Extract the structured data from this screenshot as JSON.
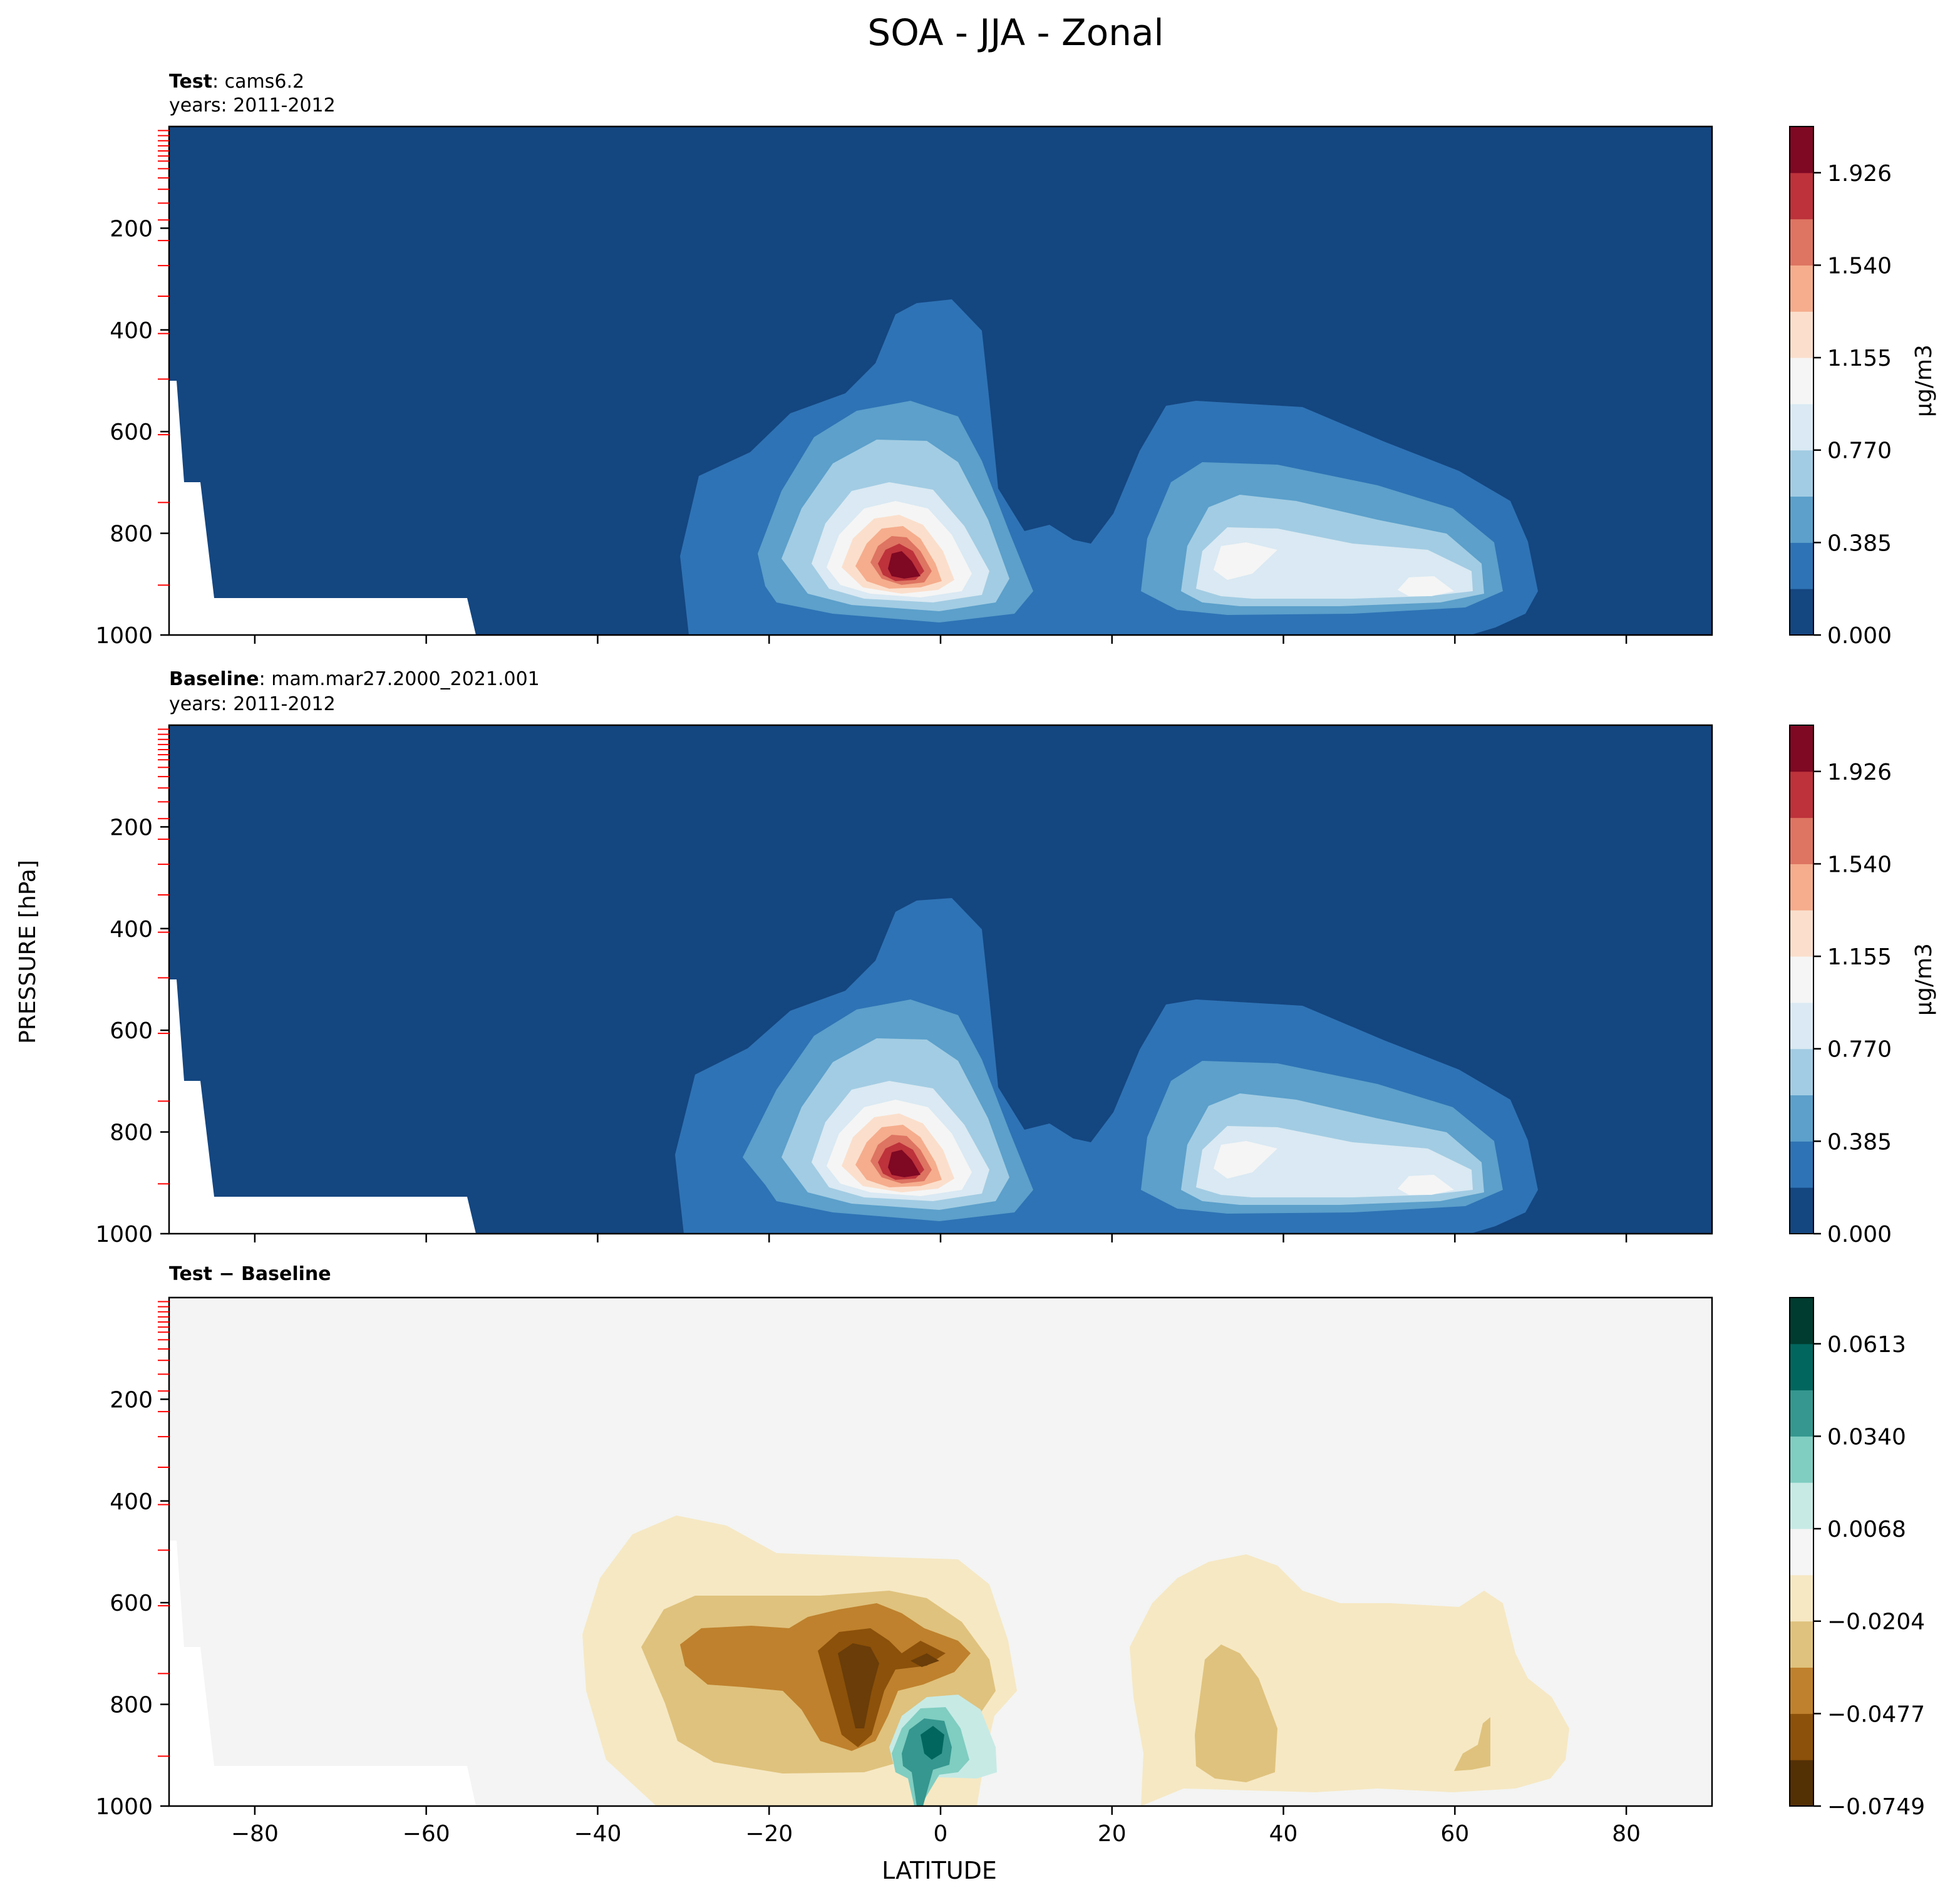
{
  "figure": {
    "suptitle": "SOA - JJA - Zonal",
    "ylabel": "PRESSURE [hPa]",
    "xlabel": "LATITUDE"
  },
  "chart_data": [
    {
      "type": "contour",
      "panel": "test",
      "title_bold": "Test",
      "title_rest": ": cams6.2",
      "subtitle": "years: 2011-2012",
      "xlim": [
        -90,
        90
      ],
      "ylim": [
        1000,
        0
      ],
      "yticks": [
        200,
        400,
        600,
        800,
        1000
      ],
      "colorbar": {
        "label": "μg/m3",
        "ticks": [
          "0.000",
          "0.385",
          "0.770",
          "1.155",
          "1.540",
          "1.926"
        ],
        "range": [
          0,
          2.2
        ],
        "colors": [
          "#144680",
          "#2e73b5",
          "#5ca0cb",
          "#a2cce3",
          "#dae9f3",
          "#f5f5f5",
          "#fbdfcc",
          "#f5ad8d",
          "#de7462",
          "#bd323b",
          "#7f0823"
        ]
      },
      "regions": [
        {
          "name": "tropical-peak",
          "level_count": 10,
          "peak_lat": -3,
          "peak_p": 900,
          "peak_value": 2.0
        },
        {
          "name": "northern-max",
          "level_count": 5,
          "peak_lat": 35,
          "peak_p": 900,
          "peak_value": 1.0
        }
      ]
    },
    {
      "type": "contour",
      "panel": "baseline",
      "title_bold": "Baseline",
      "title_rest": ": mam.mar27.2000_2021.001",
      "subtitle": "years: 2011-2012",
      "xlim": [
        -90,
        90
      ],
      "ylim": [
        1000,
        0
      ],
      "yticks": [
        200,
        400,
        600,
        800,
        1000
      ],
      "colorbar": {
        "label": "μg/m3",
        "ticks": [
          "0.000",
          "0.385",
          "0.770",
          "1.155",
          "1.540",
          "1.926"
        ],
        "range": [
          0,
          2.2
        ],
        "colors": [
          "#144680",
          "#2e73b5",
          "#5ca0cb",
          "#a2cce3",
          "#dae9f3",
          "#f5f5f5",
          "#fbdfcc",
          "#f5ad8d",
          "#de7462",
          "#bd323b",
          "#7f0823"
        ]
      },
      "regions": [
        {
          "name": "tropical-peak",
          "level_count": 10,
          "peak_lat": -3,
          "peak_p": 900,
          "peak_value": 2.0
        },
        {
          "name": "northern-max",
          "level_count": 5,
          "peak_lat": 35,
          "peak_p": 900,
          "peak_value": 1.0
        }
      ]
    },
    {
      "type": "contour",
      "panel": "difference",
      "title_bold": "Test − Baseline",
      "title_rest": "",
      "subtitle": "",
      "xlim": [
        -90,
        90
      ],
      "ylim": [
        1000,
        0
      ],
      "xticks": [
        -80,
        -60,
        -40,
        -20,
        0,
        20,
        40,
        60,
        80
      ],
      "yticks": [
        200,
        400,
        600,
        800,
        1000
      ],
      "colorbar": {
        "label": "",
        "ticks": [
          "−0.0749",
          "−0.0477",
          "−0.0204",
          "0.0068",
          "0.0340",
          "0.0613"
        ],
        "range": [
          -0.0749,
          0.0749
        ],
        "colors": [
          "#543005",
          "#8c510a",
          "#bf812d",
          "#dfc27d",
          "#f6e8c3",
          "#f5f5f5",
          "#c7eae5",
          "#80cdc1",
          "#35978f",
          "#01665e",
          "#003c30"
        ]
      },
      "regions": [
        {
          "name": "negative-tropics",
          "peak_lat": -10,
          "peak_p": 750,
          "peak_value": -0.07
        },
        {
          "name": "positive-equator",
          "peak_lat": -1,
          "peak_p": 880,
          "peak_value": 0.05
        },
        {
          "name": "negative-north",
          "peak_lat": 35,
          "peak_p": 820,
          "peak_value": -0.03
        }
      ]
    }
  ]
}
